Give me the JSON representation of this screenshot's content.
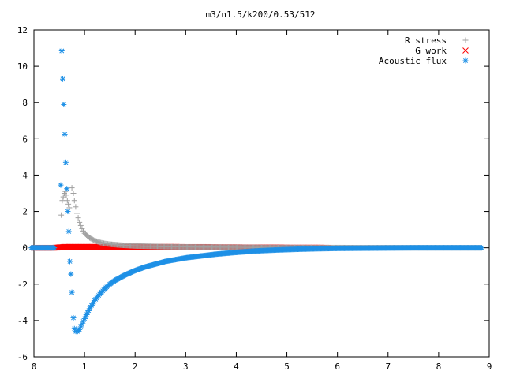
{
  "chart_data": {
    "type": "scatter",
    "title": "m3/n1.5/k200/0.53/512",
    "xlabel": "",
    "ylabel": "",
    "xlim": [
      0,
      9
    ],
    "ylim": [
      -6,
      12
    ],
    "xticks": [
      0,
      1,
      2,
      3,
      4,
      5,
      6,
      7,
      8,
      9
    ],
    "yticks": [
      -6,
      -4,
      -2,
      0,
      2,
      4,
      6,
      8,
      10,
      12
    ],
    "grid": false,
    "legend_position": "top-right",
    "series": [
      {
        "name": "R stress",
        "marker": "+",
        "color": "#a0a0a0",
        "x": [
          -0.05,
          0.2,
          0.4,
          0.54,
          0.56,
          0.6,
          0.62,
          0.64,
          0.66,
          0.7,
          0.75,
          0.78,
          0.8,
          0.85,
          0.9,
          0.95,
          1.0,
          1.1,
          1.2,
          1.3,
          1.4,
          1.5,
          1.7,
          2.0,
          2.3,
          2.6,
          3.0,
          3.5,
          4.0,
          4.5,
          5.0,
          5.5,
          6.0,
          6.5,
          7.0,
          7.5,
          8.0,
          8.5,
          8.85
        ],
        "y": [
          0.0,
          0.0,
          0.0,
          1.8,
          2.6,
          3.0,
          3.1,
          2.9,
          2.6,
          2.2,
          3.3,
          3.0,
          2.6,
          1.9,
          1.4,
          1.05,
          0.8,
          0.55,
          0.4,
          0.3,
          0.24,
          0.2,
          0.15,
          0.1,
          0.08,
          0.06,
          0.05,
          0.04,
          0.03,
          0.02,
          0.015,
          0.01,
          0.01,
          0.005,
          0.005,
          0.0,
          0.0,
          0.0,
          0.0
        ]
      },
      {
        "name": "G work",
        "marker": "x",
        "color": "#ff0000",
        "x": [
          0.0,
          0.2,
          0.4,
          0.6,
          0.8,
          1.0,
          1.2,
          1.4,
          1.6,
          1.8,
          2.0,
          2.2,
          2.4,
          2.6,
          2.8,
          3.0,
          3.2,
          3.4,
          3.6,
          3.8,
          4.0,
          4.2,
          4.4,
          4.6,
          4.8,
          5.0,
          5.2,
          5.4,
          5.6,
          5.8
        ],
        "y": [
          0.0,
          0.0,
          0.0,
          0.05,
          0.05,
          0.05,
          0.05,
          0.05,
          0.05,
          0.05,
          0.05,
          0.05,
          0.05,
          0.05,
          0.05,
          0.04,
          0.04,
          0.04,
          0.03,
          0.03,
          0.03,
          0.02,
          0.02,
          0.02,
          0.02,
          0.01,
          0.01,
          0.01,
          0.01,
          0.0
        ]
      },
      {
        "name": "Acoustic flux",
        "marker": "*",
        "color": "#1e90e6",
        "x": [
          -0.05,
          0.2,
          0.4,
          0.53,
          0.55,
          0.57,
          0.59,
          0.61,
          0.63,
          0.65,
          0.67,
          0.69,
          0.71,
          0.73,
          0.75,
          0.78,
          0.8,
          0.83,
          0.86,
          0.9,
          0.95,
          1.0,
          1.1,
          1.2,
          1.3,
          1.4,
          1.5,
          1.6,
          1.8,
          2.0,
          2.2,
          2.4,
          2.6,
          2.8,
          3.0,
          3.3,
          3.6,
          4.0,
          4.4,
          4.8,
          5.2,
          5.6,
          6.0,
          6.5,
          7.0,
          7.5,
          8.0,
          8.5,
          8.85
        ],
        "y": [
          0.0,
          0.0,
          0.0,
          3.45,
          10.85,
          9.3,
          7.9,
          6.25,
          4.7,
          3.25,
          2.0,
          0.9,
          -0.75,
          -1.45,
          -2.45,
          -3.85,
          -4.45,
          -4.6,
          -4.6,
          -4.5,
          -4.2,
          -3.9,
          -3.35,
          -2.9,
          -2.55,
          -2.25,
          -2.0,
          -1.8,
          -1.5,
          -1.25,
          -1.05,
          -0.9,
          -0.75,
          -0.65,
          -0.55,
          -0.45,
          -0.35,
          -0.25,
          -0.17,
          -0.12,
          -0.08,
          -0.05,
          -0.03,
          -0.02,
          -0.01,
          0.0,
          0.0,
          0.0,
          0.0
        ]
      }
    ]
  }
}
